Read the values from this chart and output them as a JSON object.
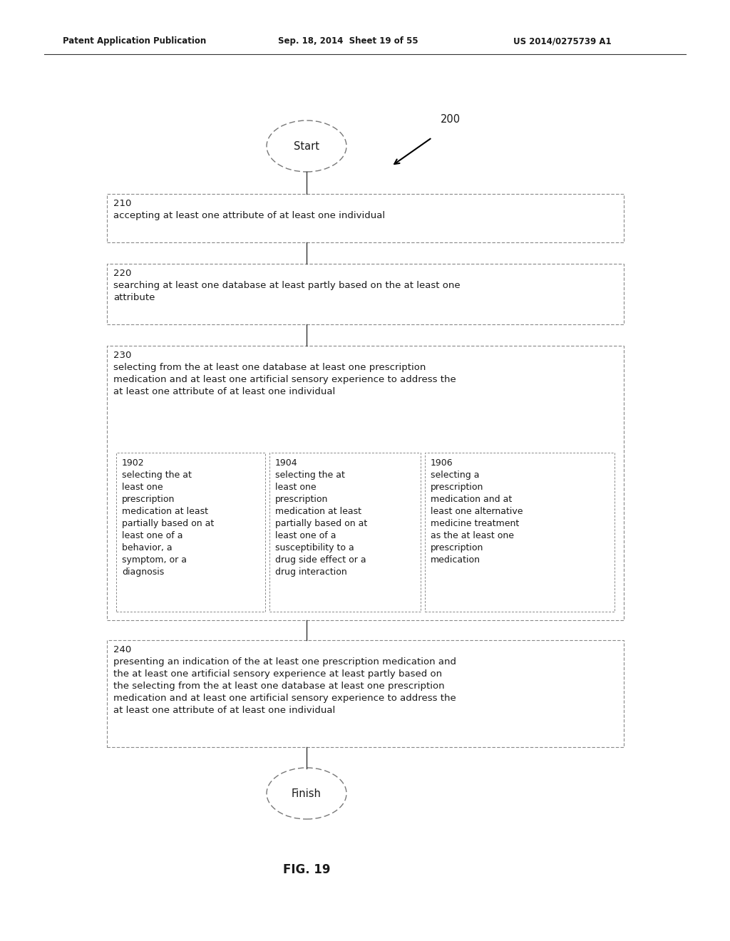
{
  "header_left": "Patent Application Publication",
  "header_mid": "Sep. 18, 2014  Sheet 19 of 55",
  "header_right": "US 2014/0275739 A1",
  "fig_label": "FIG. 19",
  "diagram_label": "200",
  "start_label": "Start",
  "finish_label": "Finish",
  "box210_num": "210",
  "box210_text": "accepting at least one attribute of at least one individual",
  "box220_num": "220",
  "box220_line1": "searching at least one database at least partly based on the at least one",
  "box220_line2": "attribute",
  "box230_num": "230",
  "box230_line1": "selecting from the at least one database at least one prescription",
  "box230_line2": "medication and at least one artificial sensory experience to address the",
  "box230_line3": "at least one attribute of at least one individual",
  "sub1902_num": "1902",
  "sub1902_lines": [
    "selecting the at",
    "least one",
    "prescription",
    "medication at least",
    "partially based on at",
    "least one of a",
    "behavior, a",
    "symptom, or a",
    "diagnosis"
  ],
  "sub1904_num": "1904",
  "sub1904_lines": [
    "selecting the at",
    "least one",
    "prescription",
    "medication at least",
    "partially based on at",
    "least one of a",
    "susceptibility to a",
    "drug side effect or a",
    "drug interaction"
  ],
  "sub1906_num": "1906",
  "sub1906_lines": [
    "selecting a",
    "prescription",
    "medication and at",
    "least one alternative",
    "medicine treatment",
    "as the at least one",
    "prescription",
    "medication"
  ],
  "box240_num": "240",
  "box240_line1": "presenting an indication of the at least one prescription medication and",
  "box240_line2": "the at least one artificial sensory experience at least partly based on",
  "box240_line3": "the selecting from the at least one database at least one prescription",
  "box240_line4": "medication and at least one artificial sensory experience to address the",
  "box240_line5": "at least one attribute of at least one individual",
  "bg_color": "#ffffff",
  "text_color": "#1a1a1a",
  "box_edge_color": "#888888",
  "header_line_color": "#000000"
}
